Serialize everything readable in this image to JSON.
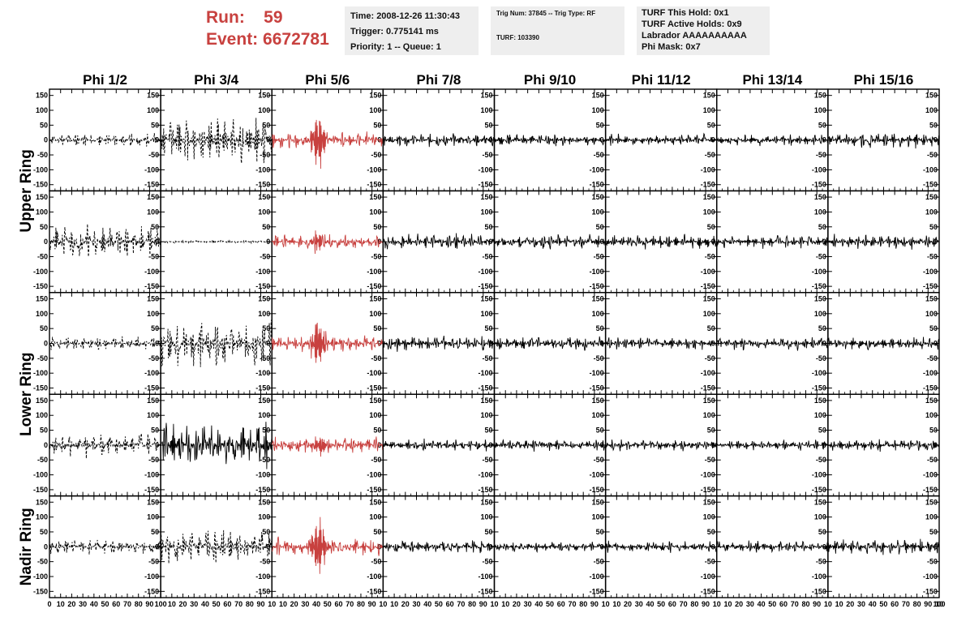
{
  "header": {
    "run_label": "Run:",
    "run_value": "59",
    "event_label": "Event:",
    "event_value": "6672781"
  },
  "info_time": {
    "time": "Time: 2008-12-26 11:30:43",
    "trigger": "Trigger: 0.775141 ms",
    "priority": "Priority: 1 -- Queue: 1"
  },
  "info_trig": {
    "trig": "Trig Num: 37845 -- Trig Type: RF",
    "turf": "TURF: 103390"
  },
  "info_turf": {
    "this_hold": "TURF This Hold: 0x1",
    "active_holds": "TURF Active Holds: 0x9",
    "labrador": "Labrador AAAAAAAAAA",
    "phi_mask": "Phi Mask: 0x7"
  },
  "chart_data": {
    "type": "line",
    "columns": [
      "Phi 1/2",
      "Phi 3/4",
      "Phi 5/6",
      "Phi 7/8",
      "Phi 9/10",
      "Phi 11/12",
      "Phi 13/14",
      "Phi 15/16"
    ],
    "row_groups": [
      {
        "label": "Upper Ring",
        "rows": 2
      },
      {
        "label": "Lower Ring",
        "rows": 2
      },
      {
        "label": "Nadir Ring",
        "rows": 1
      }
    ],
    "xlim": [
      0,
      100
    ],
    "ylim": [
      -160,
      160
    ],
    "x_ticks_first": [
      "0",
      "10",
      "20",
      "30",
      "40",
      "50",
      "60",
      "70",
      "80",
      "90",
      "100"
    ],
    "x_ticks": [
      "10",
      "20",
      "30",
      "40",
      "50",
      "60",
      "70",
      "80",
      "90",
      "10"
    ],
    "x_tick_last": "100",
    "y_ticks_left": [
      "150",
      "100",
      "50",
      "0",
      "-50",
      "-100",
      "-150"
    ],
    "y_ticks_right": [
      "150",
      "100",
      "50",
      "0",
      "-50",
      "-100",
      "-150"
    ],
    "colors": {
      "highlight": "#c8413f",
      "normal": "#000000"
    },
    "panels": [
      [
        {
          "style": "dashed",
          "color": "normal",
          "amplitude": 18,
          "burst": 0,
          "seed": 11
        },
        {
          "style": "dashed",
          "color": "normal",
          "amplitude": 65,
          "burst": 0,
          "seed": 12
        },
        {
          "style": "solid",
          "color": "highlight",
          "amplitude": 22,
          "burst": 100,
          "seed": 13
        },
        {
          "style": "solid",
          "color": "normal",
          "amplitude": 18,
          "burst": 0,
          "seed": 14
        },
        {
          "style": "solid",
          "color": "normal",
          "amplitude": 16,
          "burst": 0,
          "seed": 15
        },
        {
          "style": "solid",
          "color": "normal",
          "amplitude": 16,
          "burst": 0,
          "seed": 16
        },
        {
          "style": "solid",
          "color": "normal",
          "amplitude": 16,
          "burst": 0,
          "seed": 17
        },
        {
          "style": "solid",
          "color": "normal",
          "amplitude": 22,
          "burst": 0,
          "seed": 18
        }
      ],
      [
        {
          "style": "dashed",
          "color": "normal",
          "amplitude": 45,
          "burst": 0,
          "seed": 21
        },
        {
          "style": "dashed",
          "color": "normal",
          "amplitude": 4,
          "burst": 0,
          "seed": 22
        },
        {
          "style": "solid",
          "color": "highlight",
          "amplitude": 22,
          "burst": 35,
          "seed": 23
        },
        {
          "style": "solid",
          "color": "normal",
          "amplitude": 22,
          "burst": 0,
          "seed": 24
        },
        {
          "style": "solid",
          "color": "normal",
          "amplitude": 20,
          "burst": 0,
          "seed": 25
        },
        {
          "style": "solid",
          "color": "normal",
          "amplitude": 20,
          "burst": 0,
          "seed": 26
        },
        {
          "style": "solid",
          "color": "normal",
          "amplitude": 18,
          "burst": 0,
          "seed": 27
        },
        {
          "style": "solid",
          "color": "normal",
          "amplitude": 20,
          "burst": 0,
          "seed": 28
        }
      ],
      [
        {
          "style": "dashed",
          "color": "normal",
          "amplitude": 18,
          "burst": 0,
          "seed": 31
        },
        {
          "style": "dashed",
          "color": "normal",
          "amplitude": 65,
          "burst": 0,
          "seed": 32
        },
        {
          "style": "solid",
          "color": "highlight",
          "amplitude": 25,
          "burst": 85,
          "seed": 33
        },
        {
          "style": "solid",
          "color": "normal",
          "amplitude": 22,
          "burst": 0,
          "seed": 34
        },
        {
          "style": "solid",
          "color": "normal",
          "amplitude": 20,
          "burst": 0,
          "seed": 35
        },
        {
          "style": "solid",
          "color": "normal",
          "amplitude": 18,
          "burst": 0,
          "seed": 36
        },
        {
          "style": "solid",
          "color": "normal",
          "amplitude": 18,
          "burst": 0,
          "seed": 37
        },
        {
          "style": "solid",
          "color": "normal",
          "amplitude": 18,
          "burst": 0,
          "seed": 38
        }
      ],
      [
        {
          "style": "dashed",
          "color": "normal",
          "amplitude": 35,
          "burst": 0,
          "seed": 41
        },
        {
          "style": "solid",
          "color": "normal",
          "amplitude": 70,
          "burst": 0,
          "seed": 42
        },
        {
          "style": "solid",
          "color": "highlight",
          "amplitude": 22,
          "burst": 35,
          "seed": 43
        },
        {
          "style": "solid",
          "color": "normal",
          "amplitude": 16,
          "burst": 0,
          "seed": 44
        },
        {
          "style": "solid",
          "color": "normal",
          "amplitude": 16,
          "burst": 0,
          "seed": 45
        },
        {
          "style": "solid",
          "color": "normal",
          "amplitude": 16,
          "burst": 0,
          "seed": 46
        },
        {
          "style": "solid",
          "color": "normal",
          "amplitude": 14,
          "burst": 0,
          "seed": 47
        },
        {
          "style": "solid",
          "color": "normal",
          "amplitude": 18,
          "burst": 0,
          "seed": 48
        }
      ],
      [
        {
          "style": "dashed",
          "color": "normal",
          "amplitude": 20,
          "burst": 0,
          "seed": 51
        },
        {
          "style": "dashed",
          "color": "normal",
          "amplitude": 48,
          "burst": 0,
          "seed": 52
        },
        {
          "style": "solid",
          "color": "highlight",
          "amplitude": 25,
          "burst": 110,
          "seed": 53
        },
        {
          "style": "solid",
          "color": "normal",
          "amplitude": 20,
          "burst": 0,
          "seed": 54
        },
        {
          "style": "solid",
          "color": "normal",
          "amplitude": 14,
          "burst": 0,
          "seed": 55
        },
        {
          "style": "solid",
          "color": "normal",
          "amplitude": 16,
          "burst": 0,
          "seed": 56
        },
        {
          "style": "solid",
          "color": "normal",
          "amplitude": 16,
          "burst": 0,
          "seed": 57
        },
        {
          "style": "solid",
          "color": "normal",
          "amplitude": 22,
          "burst": 0,
          "seed": 58
        }
      ]
    ]
  }
}
